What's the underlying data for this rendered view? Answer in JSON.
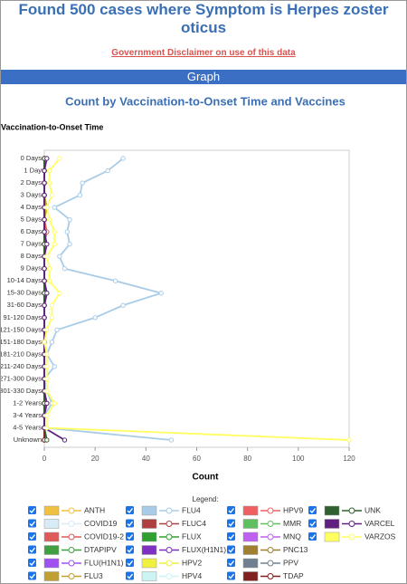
{
  "header": {
    "title": "Found 500 cases where Symptom is Herpes zoster oticus",
    "disclaimer": "Government Disclaimer on use of this data",
    "section": "Graph"
  },
  "chart_data": {
    "type": "line",
    "title": "Count by Vaccination-to-Onset Time and Vaccines",
    "y_label": "Vaccination-to-Onset Time",
    "x_label": "Count",
    "legend_title": "Legend:",
    "categories": [
      "0 Days",
      "1 Day",
      "2 Days",
      "3 Days",
      "4 Days",
      "5 Days",
      "6 Days",
      "7 Days",
      "8 Days",
      "9 Days",
      "10-14 Days",
      "15-30 Days",
      "31-60 Days",
      "91-120 Days",
      "121-150 Days",
      "151-180 Days",
      "181-210 Days",
      "211-240 Days",
      "271-300 Days",
      "301-330 Days",
      "1-2 Years",
      "3-4 Years",
      "4-5 Years",
      "Unknown"
    ],
    "xlim": [
      0,
      120
    ],
    "xticks": [
      0,
      20,
      40,
      60,
      80,
      100,
      120
    ],
    "series": [
      {
        "name": "ANTH",
        "color": "#f0c040",
        "values": [
          0,
          0,
          0,
          0,
          0,
          0,
          0,
          0,
          0,
          0,
          0,
          0,
          0,
          0,
          0,
          0,
          0,
          0,
          0,
          0,
          0,
          0,
          0,
          0
        ]
      },
      {
        "name": "COVID19",
        "color": "#d8ecf8",
        "values": [
          1,
          0,
          0,
          0,
          0,
          0,
          0,
          0,
          0,
          0,
          0,
          0,
          0,
          0,
          0,
          0,
          0,
          0,
          0,
          0,
          0,
          0,
          0,
          0
        ]
      },
      {
        "name": "COVID19-2",
        "color": "#e05a5a",
        "values": [
          0,
          0,
          0,
          0,
          0,
          0,
          1,
          0,
          0,
          0,
          0,
          0,
          0,
          0,
          0,
          0,
          0,
          0,
          0,
          0,
          0,
          0,
          0,
          0
        ]
      },
      {
        "name": "DTAPIPV",
        "color": "#40a040",
        "values": [
          0,
          0,
          0,
          0,
          0,
          0,
          0,
          0,
          0,
          0,
          0,
          0,
          0,
          0,
          0,
          0,
          0,
          0,
          0,
          0,
          0,
          0,
          0,
          0
        ]
      },
      {
        "name": "FLU(H1N1)",
        "color": "#a050f0",
        "values": [
          0,
          0,
          0,
          0,
          0,
          0,
          0,
          0,
          0,
          0,
          0,
          0,
          0,
          0,
          0,
          0,
          0,
          0,
          0,
          0,
          0,
          0,
          0,
          0
        ]
      },
      {
        "name": "FLU3",
        "color": "#c0a030",
        "values": [
          0,
          0,
          0,
          0,
          1,
          0,
          0,
          0,
          0,
          0,
          0,
          0,
          0,
          0,
          0,
          0,
          0,
          0,
          0,
          0,
          1,
          0,
          0,
          0
        ]
      },
      {
        "name": "FLU4",
        "color": "#a8cce8",
        "values": [
          31,
          25,
          15,
          14,
          4,
          10,
          9,
          10,
          6,
          8,
          28,
          46,
          31,
          20,
          5,
          3,
          1,
          4,
          0,
          1,
          3,
          0,
          0,
          50
        ]
      },
      {
        "name": "FLUC4",
        "color": "#b04040",
        "values": [
          0,
          0,
          0,
          0,
          0,
          0,
          0,
          0,
          0,
          0,
          0,
          0,
          0,
          0,
          0,
          0,
          0,
          0,
          0,
          0,
          0,
          0,
          0,
          0
        ]
      },
      {
        "name": "FLUX",
        "color": "#30a030",
        "values": [
          0,
          0,
          0,
          0,
          0,
          0,
          0,
          0,
          0,
          0,
          0,
          1,
          0,
          0,
          0,
          0,
          0,
          0,
          0,
          0,
          0,
          0,
          0,
          0
        ]
      },
      {
        "name": "FLUX(H1N1)",
        "color": "#8030c0",
        "values": [
          0,
          0,
          0,
          0,
          0,
          0,
          0,
          0,
          0,
          0,
          0,
          0,
          0,
          0,
          0,
          0,
          0,
          0,
          0,
          0,
          0,
          0,
          0,
          0
        ]
      },
      {
        "name": "HPV2",
        "color": "#f0f040",
        "values": [
          0,
          0,
          0,
          0,
          0,
          0,
          0,
          0,
          0,
          0,
          0,
          0,
          0,
          0,
          0,
          0,
          0,
          0,
          0,
          0,
          0,
          0,
          0,
          0
        ]
      },
      {
        "name": "HPV4",
        "color": "#ccf4f4",
        "values": [
          0,
          0,
          0,
          0,
          0,
          0,
          0,
          0,
          0,
          0,
          0,
          0,
          0,
          0,
          0,
          0,
          0,
          0,
          0,
          0,
          0,
          0,
          0,
          0
        ]
      },
      {
        "name": "HPV9",
        "color": "#f06060",
        "values": [
          0,
          0,
          0,
          0,
          0,
          0,
          0,
          0,
          0,
          0,
          0,
          0,
          0,
          0,
          0,
          0,
          0,
          0,
          0,
          0,
          0,
          0,
          0,
          0
        ]
      },
      {
        "name": "MMR",
        "color": "#60c060",
        "values": [
          0,
          0,
          0,
          0,
          0,
          0,
          0,
          0,
          0,
          0,
          0,
          0,
          0,
          0,
          0,
          0,
          0,
          0,
          0,
          0,
          0,
          0,
          0,
          0
        ]
      },
      {
        "name": "MNQ",
        "color": "#c060f0",
        "values": [
          0,
          0,
          0,
          0,
          0,
          0,
          0,
          0,
          0,
          0,
          0,
          0,
          0,
          0,
          0,
          0,
          0,
          0,
          0,
          0,
          0,
          0,
          0,
          0
        ]
      },
      {
        "name": "PNC13",
        "color": "#a08030",
        "values": [
          0,
          0,
          0,
          0,
          0,
          0,
          0,
          0,
          0,
          0,
          0,
          0,
          0,
          0,
          0,
          0,
          0,
          0,
          0,
          0,
          0,
          0,
          0,
          0
        ]
      },
      {
        "name": "PPV",
        "color": "#708090",
        "values": [
          0,
          0,
          0,
          0,
          0,
          0,
          0,
          0,
          0,
          0,
          0,
          0,
          0,
          0,
          0,
          0,
          0,
          0,
          0,
          0,
          0,
          0,
          0,
          0
        ]
      },
      {
        "name": "TDAP",
        "color": "#802020",
        "values": [
          0,
          0,
          0,
          0,
          0,
          0,
          0,
          0,
          0,
          0,
          0,
          0,
          0,
          0,
          0,
          0,
          0,
          0,
          0,
          0,
          0,
          0,
          0,
          0
        ]
      },
      {
        "name": "UNK",
        "color": "#306030",
        "values": [
          0,
          0,
          0,
          0,
          0,
          0,
          0,
          0,
          0,
          0,
          0,
          0,
          0,
          0,
          0,
          0,
          0,
          0,
          0,
          0,
          0,
          0,
          0,
          1
        ]
      },
      {
        "name": "VARCEL",
        "color": "#602080",
        "values": [
          1,
          0,
          0,
          0,
          0,
          0,
          0,
          1,
          0,
          0,
          0,
          1,
          0,
          0,
          0,
          0,
          0,
          0,
          0,
          0,
          1,
          0,
          0,
          8
        ]
      },
      {
        "name": "VARZOS",
        "color": "#ffff60",
        "values": [
          6,
          2,
          2,
          3,
          1,
          2,
          4,
          4,
          1,
          2,
          2,
          6,
          3,
          3,
          1,
          0,
          1,
          1,
          1,
          1,
          4,
          1,
          1,
          120
        ]
      }
    ]
  }
}
